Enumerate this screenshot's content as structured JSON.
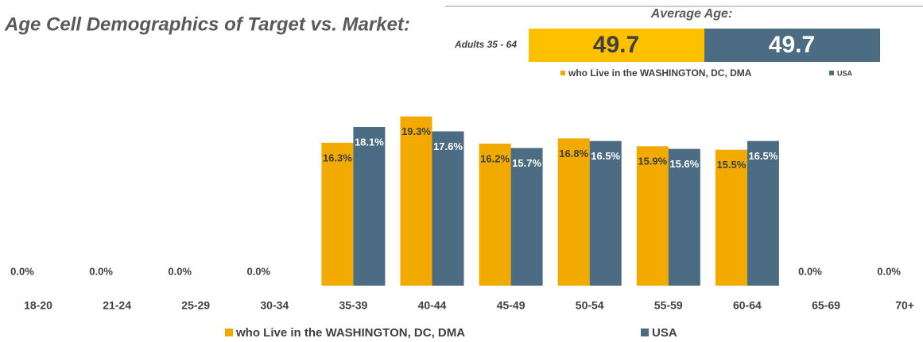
{
  "chart_data": {
    "type": "bar",
    "title": "Age Cell Demographics of Target vs. Market:",
    "average_age": {
      "title": "Average Age:",
      "group": "Adults 35 - 64",
      "values": [
        49.7,
        49.7
      ],
      "colors": [
        "#ffc000",
        "#4b6c82"
      ]
    },
    "categories": [
      "18-20",
      "21-24",
      "25-29",
      "30-34",
      "35-39",
      "40-44",
      "45-49",
      "50-54",
      "55-59",
      "60-64",
      "65-69",
      "70+"
    ],
    "series": [
      {
        "name": "who Live in the WASHINGTON, DC, DMA",
        "color": "#f2a900",
        "values": [
          0,
          0,
          0,
          0,
          16.3,
          19.3,
          16.2,
          16.8,
          15.9,
          15.5,
          0,
          0
        ],
        "value_labels": [
          "0.0%",
          "0.0%",
          "0.0%",
          "0.0%",
          "16.3%",
          "19.3%",
          "16.2%",
          "16.8%",
          "15.9%",
          "15.5%",
          "0.0%",
          "0.0%"
        ]
      },
      {
        "name": "USA",
        "color": "#4b6c82",
        "values": [
          null,
          null,
          null,
          null,
          18.1,
          17.6,
          15.7,
          16.5,
          15.6,
          16.5,
          null,
          null
        ],
        "value_labels": [
          null,
          null,
          null,
          null,
          "18.1%",
          "17.6%",
          "15.7%",
          "16.5%",
          "15.6%",
          "16.5%",
          null,
          null
        ]
      }
    ],
    "ylim": [
      0,
      20
    ]
  }
}
